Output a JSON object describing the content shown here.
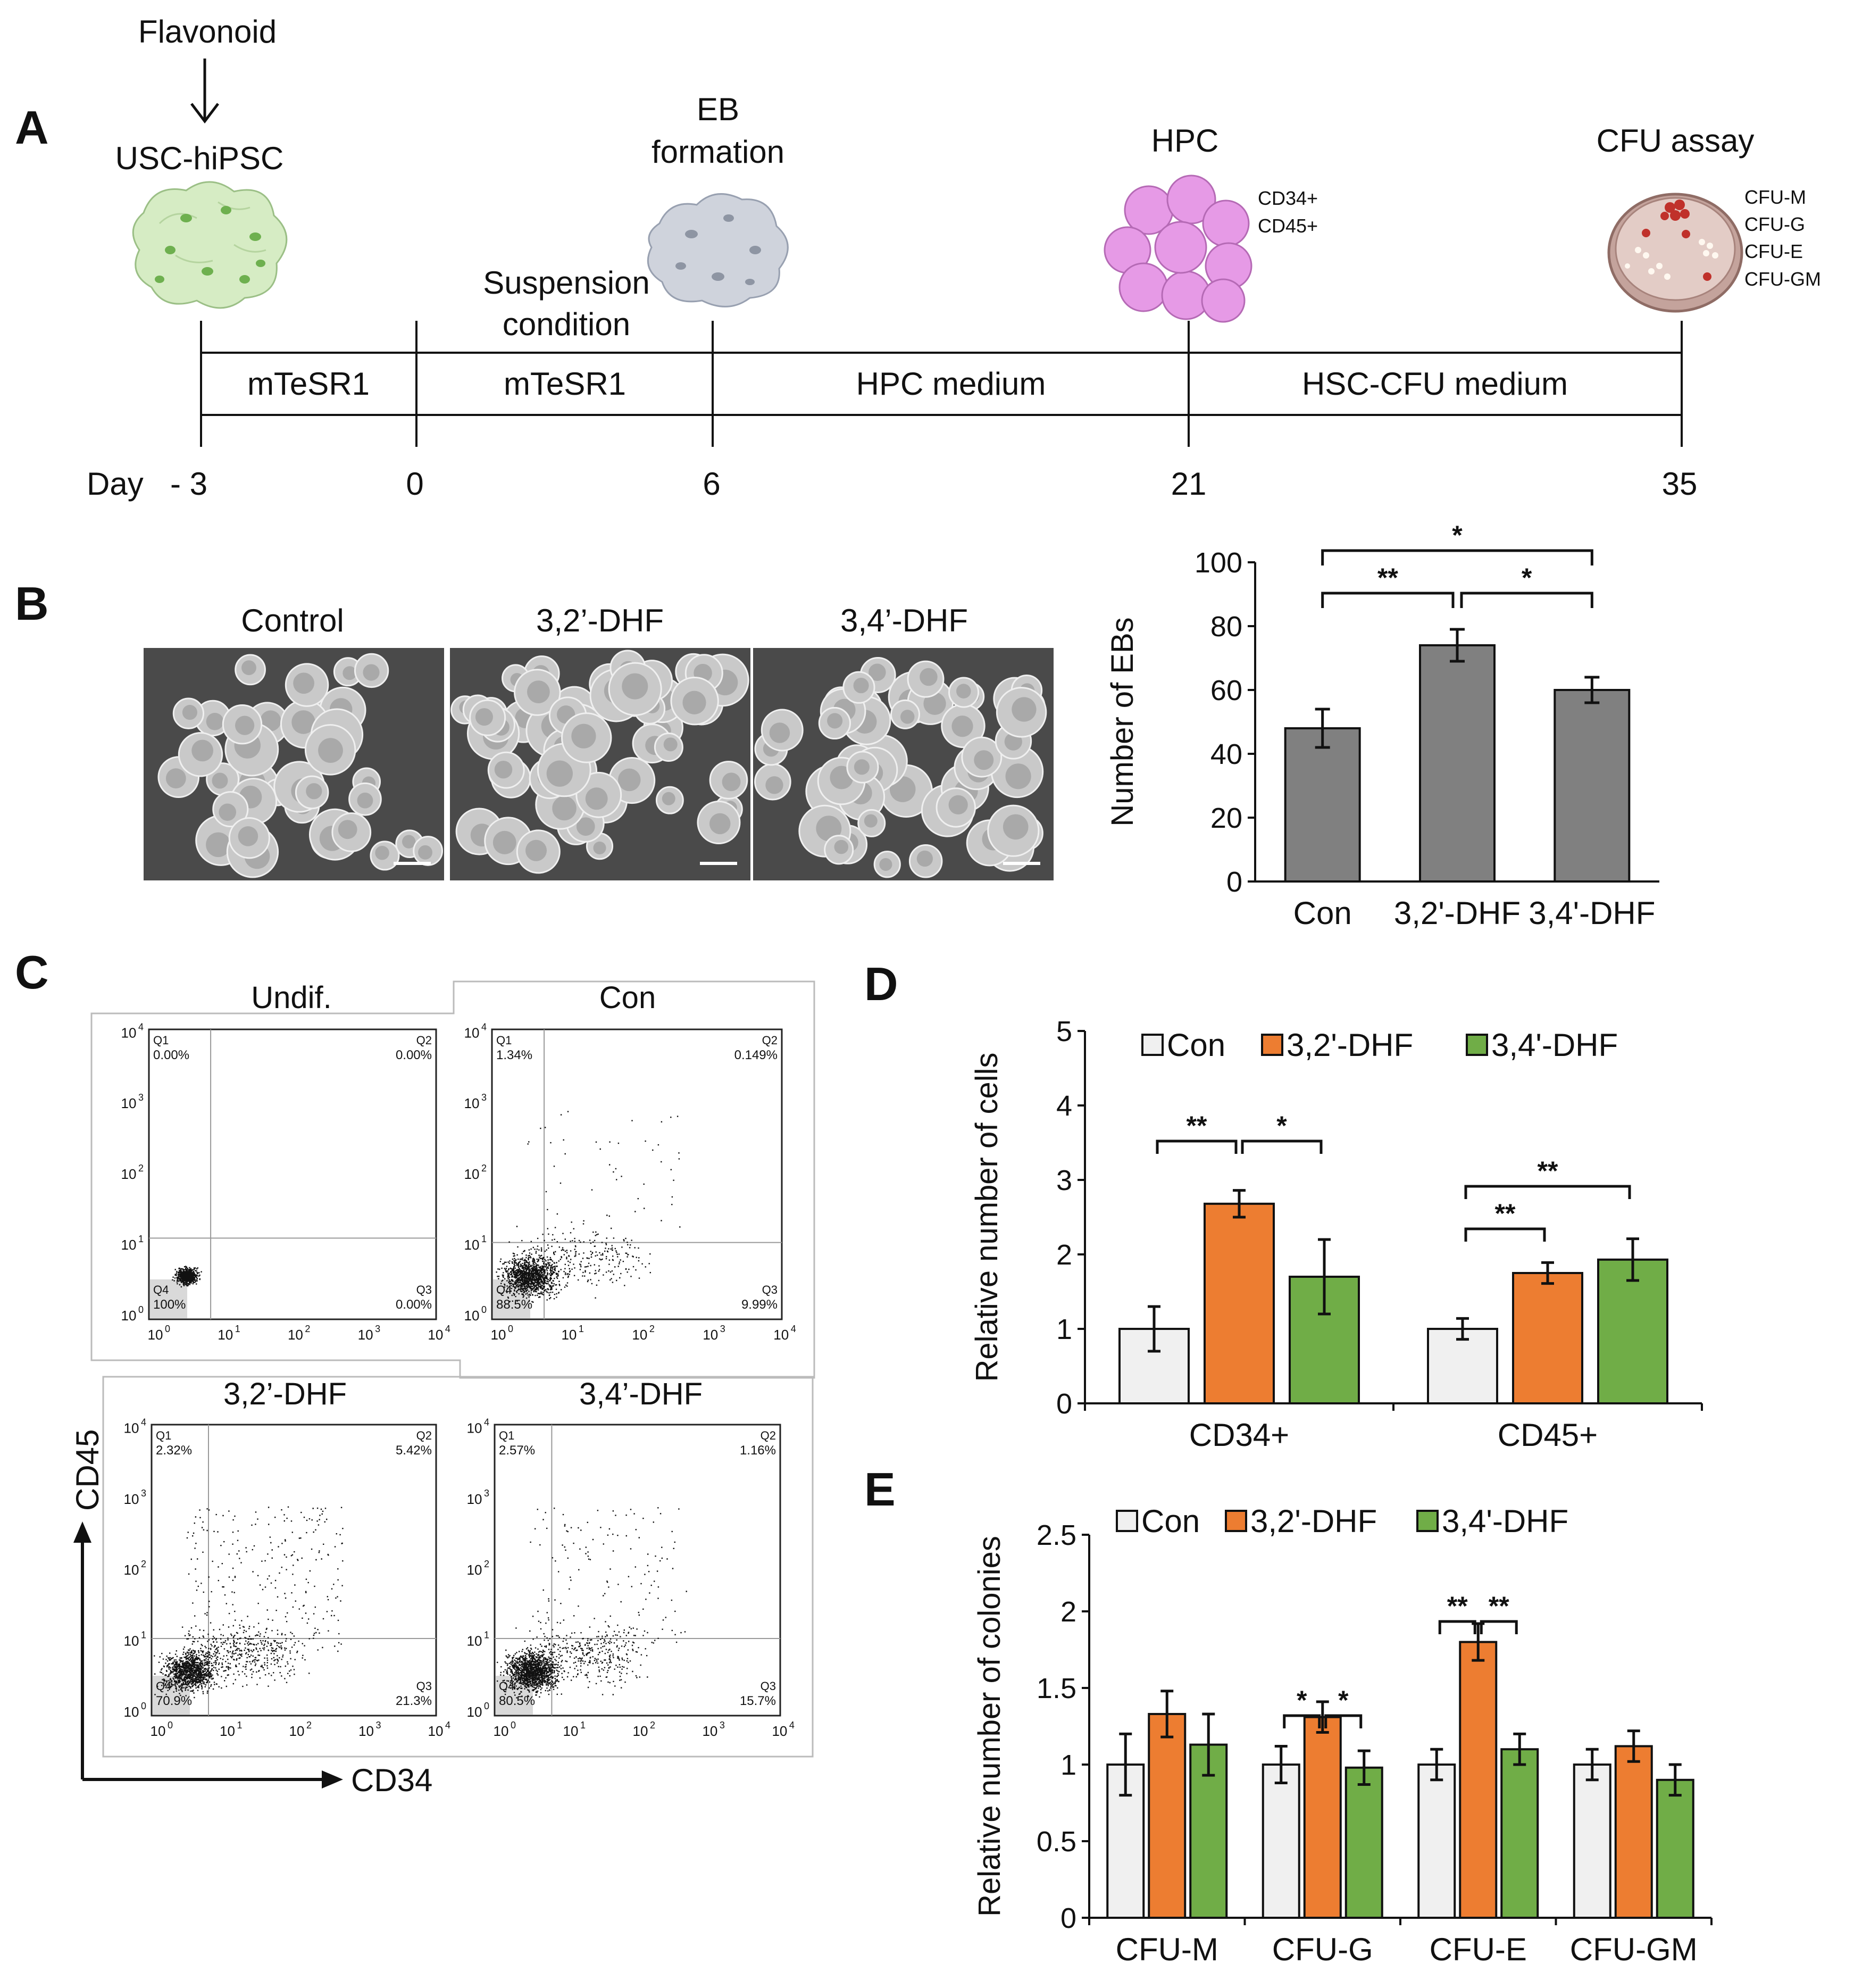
{
  "panel_labels": {
    "a": "A",
    "b": "B",
    "c": "C",
    "d": "D",
    "e": "E"
  },
  "timeline": {
    "flavonoid_label": "Flavonoid",
    "day_prefix": "Day",
    "stages": [
      {
        "title": "USC-hiPSC"
      },
      {
        "title": "EB\nformation"
      },
      {
        "title": "HPC",
        "markers": [
          "CD34+",
          "CD45+"
        ]
      },
      {
        "title": "CFU assay",
        "markers": [
          "CFU-M",
          "CFU-G",
          "CFU-E",
          "CFU-GM"
        ]
      }
    ],
    "suspension_label": "Suspension\ncondition",
    "segments": [
      "mTeSR1",
      "mTeSR1",
      "HPC medium",
      "HSC-CFU medium"
    ],
    "days": [
      "- 3",
      "0",
      "6",
      "21",
      "35"
    ],
    "colors": {
      "ipsc": "#cfe8b8",
      "eb": "#c8ccd6",
      "hpc": "#e8a0e8",
      "dish": "#c9a7a0"
    }
  },
  "micrographs": {
    "titles": [
      "Control",
      "3,2’-DHF",
      "3,4’-DHF"
    ]
  },
  "flow": {
    "x_axis_label": "CD34",
    "y_axis_label": "CD45",
    "tick_labels": [
      "10",
      "0",
      "1",
      "2",
      "3",
      "4"
    ],
    "quadrant_names": [
      "Q1",
      "Q2",
      "Q3",
      "Q4"
    ],
    "plots": [
      {
        "title": "Undif.",
        "q1": "0.00%",
        "q2": "0.00%",
        "q3": "0.00%",
        "q4": "100%"
      },
      {
        "title": "Con",
        "q1": "1.34%",
        "q2": "0.149%",
        "q3": "9.99%",
        "q4": "88.5%"
      },
      {
        "title": "3,2’-DHF",
        "q1": "2.32%",
        "q2": "5.42%",
        "q3": "21.3%",
        "q4": "70.9%"
      },
      {
        "title": "3,4’-DHF",
        "q1": "2.57%",
        "q2": "1.16%",
        "q3": "15.7%",
        "q4": "80.5%"
      }
    ]
  },
  "chart_data": [
    {
      "id": "B",
      "type": "bar",
      "categories": [
        "Con",
        "3,2'-DHF",
        "3,4'-DHF"
      ],
      "values": [
        48,
        74,
        60
      ],
      "errors": [
        6,
        5,
        4
      ],
      "ylabel": "Number of EBs",
      "ylim": [
        0,
        100
      ],
      "yticks": [
        0,
        20,
        40,
        60,
        80,
        100
      ],
      "bar_color": "#808080",
      "significance": [
        {
          "from": 0,
          "to": 1,
          "label": "**"
        },
        {
          "from": 1,
          "to": 2,
          "label": "*"
        },
        {
          "from": 0,
          "to": 2,
          "label": "*"
        }
      ]
    },
    {
      "id": "D",
      "type": "bar",
      "categories": [
        "CD34+",
        "CD45+"
      ],
      "series": [
        {
          "name": "Con",
          "values": [
            1.0,
            1.0
          ],
          "errors": [
            0.3,
            0.14
          ],
          "color": "#f0f0f0"
        },
        {
          "name": "3,2'-DHF",
          "values": [
            2.68,
            1.75
          ],
          "errors": [
            0.18,
            0.14
          ],
          "color": "#ed7d31"
        },
        {
          "name": "3,4'-DHF",
          "values": [
            1.7,
            1.93
          ],
          "errors": [
            0.5,
            0.28
          ],
          "color": "#70ad47"
        }
      ],
      "ylabel": "Relative number of cells",
      "ylim": [
        0,
        5
      ],
      "yticks": [
        0,
        1,
        2,
        3,
        4,
        5
      ],
      "legend": "top",
      "significance": [
        {
          "group": 0,
          "from": 0,
          "to": 1,
          "label": "**"
        },
        {
          "group": 0,
          "from": 1,
          "to": 2,
          "label": "*"
        },
        {
          "group": 1,
          "from": 0,
          "to": 1,
          "label": "**"
        },
        {
          "group": 1,
          "from": 0,
          "to": 2,
          "label": "**"
        }
      ]
    },
    {
      "id": "E",
      "type": "bar",
      "categories": [
        "CFU-M",
        "CFU-G",
        "CFU-E",
        "CFU-GM"
      ],
      "series": [
        {
          "name": "Con",
          "values": [
            1.0,
            1.0,
            1.0,
            1.0
          ],
          "errors": [
            0.2,
            0.12,
            0.1,
            0.1
          ],
          "color": "#f0f0f0"
        },
        {
          "name": "3,2'-DHF",
          "values": [
            1.33,
            1.31,
            1.8,
            1.12
          ],
          "errors": [
            0.15,
            0.1,
            0.12,
            0.1
          ],
          "color": "#ed7d31"
        },
        {
          "name": "3,4'-DHF",
          "values": [
            1.13,
            0.98,
            1.1,
            0.9
          ],
          "errors": [
            0.2,
            0.11,
            0.1,
            0.1
          ],
          "color": "#70ad47"
        }
      ],
      "ylabel": "Relative number of colonies",
      "ylim": [
        0,
        2.5
      ],
      "yticks": [
        0,
        0.5,
        1,
        1.5,
        2,
        2.5
      ],
      "legend": "top",
      "significance": [
        {
          "group": 1,
          "from": 0,
          "to": 1,
          "label": "*"
        },
        {
          "group": 1,
          "from": 1,
          "to": 2,
          "label": "*"
        },
        {
          "group": 2,
          "from": 0,
          "to": 1,
          "label": "**"
        },
        {
          "group": 2,
          "from": 1,
          "to": 2,
          "label": "**"
        }
      ]
    }
  ]
}
